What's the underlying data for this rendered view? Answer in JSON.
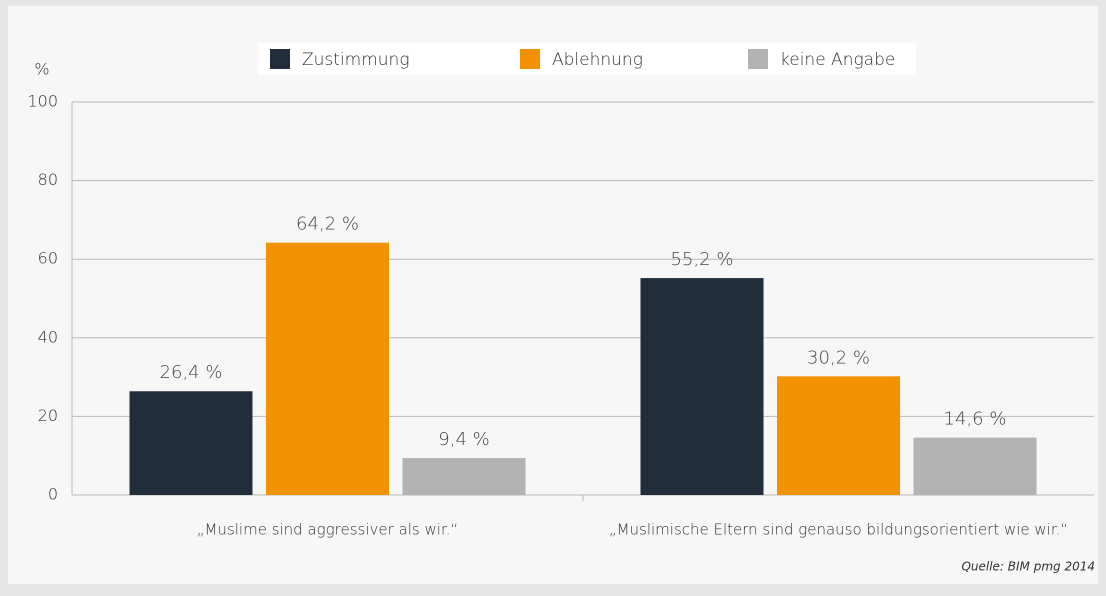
{
  "chart_data": {
    "type": "bar",
    "y_axis_label": "%",
    "categories": [
      "„Muslime sind aggressiver als wir.“",
      "„Muslimische Eltern sind genauso bildungsorientiert wie wir.“"
    ],
    "series": [
      {
        "name": "Zustimmung",
        "color": "#222d3c",
        "values": [
          26.4,
          55.2
        ],
        "value_labels": [
          "26,4 %",
          "55,2 %"
        ]
      },
      {
        "name": "Ablehnung",
        "color": "#f39200",
        "values": [
          64.2,
          30.2
        ],
        "value_labels": [
          "64,2 %",
          "30,2 %"
        ]
      },
      {
        "name": "keine Angabe",
        "color": "#b2b2b2",
        "values": [
          9.4,
          14.6
        ],
        "value_labels": [
          "9,4 %",
          "14,6 %"
        ]
      }
    ],
    "ylim": [
      0,
      100
    ],
    "yticks": [
      0,
      20,
      40,
      60,
      80,
      100
    ],
    "grid": true,
    "legend": "top",
    "source": "Quelle: BIM pmg 2014"
  }
}
